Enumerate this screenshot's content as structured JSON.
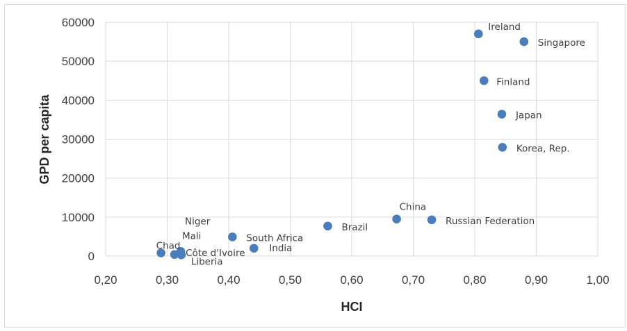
{
  "chart_data": {
    "type": "scatter",
    "xlabel": "HCI",
    "ylabel": "GPD per capita",
    "xlim": [
      0.2,
      1.0
    ],
    "ylim": [
      0,
      60000
    ],
    "x_ticks": [
      "0,20",
      "0,30",
      "0,40",
      "0,50",
      "0,60",
      "0,70",
      "0,80",
      "0,90",
      "1,00"
    ],
    "y_ticks": [
      "0",
      "10000",
      "20000",
      "30000",
      "40000",
      "50000",
      "60000"
    ],
    "grid": true,
    "marker_color": "#4a7ebb",
    "points": [
      {
        "label": "Ireland",
        "x": 0.806,
        "y": 57000
      },
      {
        "label": "Singapore",
        "x": 0.88,
        "y": 55000
      },
      {
        "label": "Finland",
        "x": 0.815,
        "y": 45000
      },
      {
        "label": "Japan",
        "x": 0.844,
        "y": 36400
      },
      {
        "label": "Korea, Rep.",
        "x": 0.845,
        "y": 27900
      },
      {
        "label": "China",
        "x": 0.673,
        "y": 9500
      },
      {
        "label": "Russian Federation",
        "x": 0.73,
        "y": 9300
      },
      {
        "label": "Brazil",
        "x": 0.561,
        "y": 7700
      },
      {
        "label": "South Africa",
        "x": 0.406,
        "y": 4900
      },
      {
        "label": "India",
        "x": 0.441,
        "y": 2000
      },
      {
        "label": "Niger",
        "x": 0.322,
        "y": 1200
      },
      {
        "label": "Mali",
        "x": 0.322,
        "y": 1000
      },
      {
        "label": "Chad",
        "x": 0.29,
        "y": 800
      },
      {
        "label": "Côte d'Ivoire",
        "x": 0.312,
        "y": 400
      },
      {
        "label": "Liberia",
        "x": 0.323,
        "y": 300
      }
    ]
  }
}
